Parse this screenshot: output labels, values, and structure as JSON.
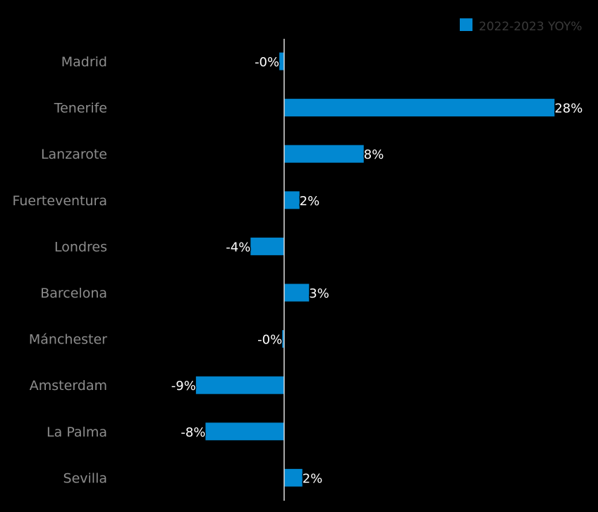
{
  "chart_data": {
    "type": "bar",
    "orientation": "horizontal",
    "categories": [
      "Madrid",
      "Tenerife",
      "Lanzarote",
      "Fuerteventura",
      "Londres",
      "Barcelona",
      "Mánchester",
      "Amsterdam",
      "La Palma",
      "Sevilla"
    ],
    "series": [
      {
        "name": "2022-2023 YOY%",
        "values": [
          -0.5,
          28.2,
          8.3,
          1.6,
          -3.5,
          2.6,
          -0.2,
          -9.2,
          -8.2,
          1.9
        ],
        "labels": [
          "-0%",
          "28%",
          "8%",
          "2%",
          "-4%",
          "3%",
          "-0%",
          "-9%",
          "-8%",
          "2%"
        ]
      }
    ],
    "xlim": [
      -17.5,
      32
    ],
    "grid": false,
    "legend": "top-right",
    "colors": {
      "bar": "#0288d1",
      "background": "#000000",
      "axis": "#e0e0e0"
    }
  }
}
